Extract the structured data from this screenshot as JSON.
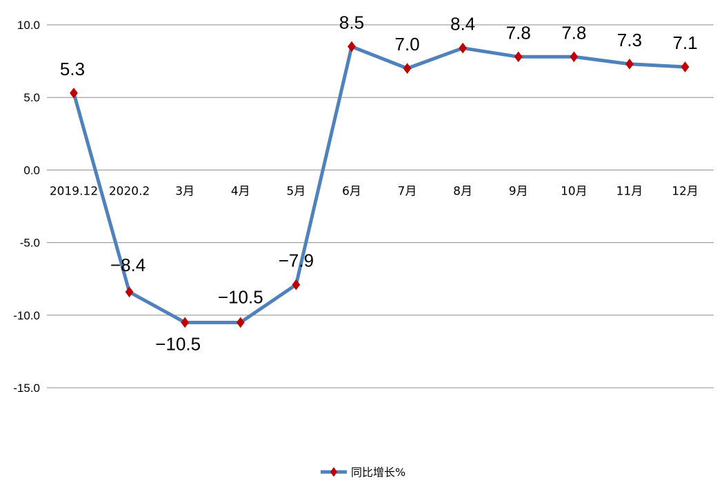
{
  "chart_data": {
    "type": "line",
    "categories": [
      "2019.12",
      "2020.2",
      "3月",
      "4月",
      "5月",
      "6月",
      "7月",
      "8月",
      "9月",
      "10月",
      "11月",
      "12月"
    ],
    "series": [
      {
        "name": "同比增长%",
        "values": [
          5.3,
          -8.4,
          -10.5,
          -10.5,
          -7.9,
          8.5,
          7.0,
          8.4,
          7.8,
          7.8,
          7.3,
          7.1
        ],
        "labels": [
          "5.3",
          "−8.4",
          "−10.5",
          "−10.5",
          "−7.9",
          "8.5",
          "7.0",
          "8.4",
          "7.8",
          "7.8",
          "7.3",
          "7.1"
        ],
        "color": "#4f81bd",
        "marker_color": "#c00000",
        "marker": "diamond"
      }
    ],
    "y_ticks": [
      10,
      5,
      0,
      -5,
      -10,
      -15
    ],
    "y_tick_labels": [
      "10.0",
      "5.0",
      "0.0",
      "-5.0",
      "-10.0",
      "-15.0"
    ],
    "ylim": [
      -15,
      10
    ],
    "grid": true,
    "legend_position": "bottom-center",
    "title": "",
    "xlabel": "",
    "ylabel": ""
  }
}
